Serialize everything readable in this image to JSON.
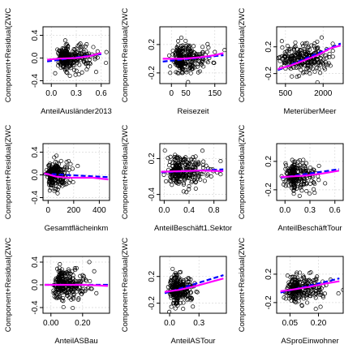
{
  "chart_data": [
    {
      "type": "scatter",
      "title": "",
      "xlabel": "AnteilAusländer2013",
      "ylabel": "Component+Residual(ZWC",
      "xlim": [
        -0.1,
        0.7
      ],
      "ylim": [
        -0.45,
        0.55
      ],
      "xticks": [
        "0.0",
        "0.3",
        "0.6"
      ],
      "xtick_values": [
        0.0,
        0.3,
        0.6
      ],
      "yticks": [
        "-0.4",
        "0.0",
        "0.4"
      ],
      "ytick_values": [
        -0.4,
        0.0,
        0.4
      ],
      "point_cloud": {
        "center_x": 0.2,
        "spread_x": 0.12,
        "skew_right": true,
        "center_y": 0.0,
        "spread_y": 0.12,
        "count": 260
      },
      "series": [
        {
          "color": "#0000ff",
          "dashed": true,
          "x": [
            -0.05,
            0.6
          ],
          "y": [
            -0.06,
            0.07
          ]
        },
        {
          "color": "#ff00ff",
          "dashed": false,
          "x": [
            -0.05,
            0.1,
            0.3,
            0.45,
            0.6
          ],
          "y": [
            -0.03,
            -0.01,
            0.0,
            0.03,
            0.09
          ]
        }
      ]
    },
    {
      "type": "scatter",
      "title": "",
      "xlabel": "Reisezeit",
      "ylabel": "Component+Residual(ZWC",
      "xlim": [
        -40,
        190
      ],
      "ylim": [
        -0.35,
        0.45
      ],
      "xticks": [
        "0",
        "50",
        "150"
      ],
      "xtick_values": [
        0,
        50,
        150
      ],
      "yticks": [
        "-0.2",
        "0.2"
      ],
      "ytick_values": [
        -0.2,
        0.2
      ],
      "point_cloud": {
        "center_x": 40,
        "spread_x": 35,
        "skew_right": true,
        "center_y": 0.0,
        "spread_y": 0.1,
        "count": 260
      },
      "series": [
        {
          "color": "#0000ff",
          "dashed": true,
          "x": [
            -30,
            180
          ],
          "y": [
            -0.04,
            0.05
          ]
        },
        {
          "color": "#ff00ff",
          "dashed": false,
          "x": [
            -30,
            40,
            100,
            150,
            180
          ],
          "y": [
            0.0,
            0.0,
            0.02,
            0.05,
            0.08
          ]
        }
      ]
    },
    {
      "type": "scatter",
      "title": "",
      "xlabel": "MeterüberMeer",
      "ylabel": "Component+Residual(ZWC",
      "xlim": [
        150,
        2800
      ],
      "ylim": [
        -0.35,
        0.5
      ],
      "xticks": [
        "500",
        "2000"
      ],
      "xtick_values": [
        500,
        2000
      ],
      "yticks": [
        "-0.2",
        "0.2"
      ],
      "ytick_values": [
        -0.2,
        0.2
      ],
      "point_cloud": {
        "center_x": 1200,
        "spread_x": 550,
        "skew_right": false,
        "center_y": 0.02,
        "spread_y": 0.11,
        "count": 260
      },
      "series": [
        {
          "color": "#0000ff",
          "dashed": true,
          "x": [
            200,
            2700
          ],
          "y": [
            -0.15,
            0.25
          ]
        },
        {
          "color": "#ff00ff",
          "dashed": false,
          "x": [
            200,
            700,
            1200,
            1800,
            2300,
            2700
          ],
          "y": [
            -0.13,
            -0.08,
            -0.01,
            0.08,
            0.18,
            0.22
          ]
        }
      ]
    },
    {
      "type": "scatter",
      "title": "",
      "xlabel": "Gesamtflächeinkm",
      "ylabel": "Component+Residual(ZWC",
      "xlim": [
        -40,
        480
      ],
      "ylim": [
        -0.45,
        0.55
      ],
      "xticks": [
        "0",
        "200",
        "400"
      ],
      "xtick_values": [
        0,
        200,
        400
      ],
      "yticks": [
        "-0.4",
        "0.0",
        "0.4"
      ],
      "ytick_values": [
        -0.4,
        0.0,
        0.4
      ],
      "point_cloud": {
        "center_x": 40,
        "spread_x": 45,
        "skew_right": true,
        "center_y": 0.0,
        "spread_y": 0.11,
        "count": 230
      },
      "series": [
        {
          "color": "#0000ff",
          "dashed": true,
          "x": [
            -30,
            470
          ],
          "y": [
            0.02,
            -0.04
          ]
        },
        {
          "color": "#ff00ff",
          "dashed": false,
          "x": [
            -30,
            60,
            150,
            250,
            350,
            470
          ],
          "y": [
            0.03,
            -0.03,
            -0.05,
            -0.05,
            -0.05,
            -0.08
          ]
        }
      ]
    },
    {
      "type": "scatter",
      "title": "",
      "xlabel": "AnteilBeschäft1.Sektor",
      "ylabel": "Component+Residual(ZWC",
      "xlim": [
        -0.07,
        1.0
      ],
      "ylim": [
        -0.5,
        0.45
      ],
      "xticks": [
        "0.0",
        "0.4",
        "0.8"
      ],
      "xtick_values": [
        0.0,
        0.4,
        0.8
      ],
      "yticks": [
        "-0.4",
        "0.2"
      ],
      "ytick_values": [
        -0.4,
        0.2
      ],
      "point_cloud": {
        "center_x": 0.25,
        "spread_x": 0.18,
        "skew_right": true,
        "center_y": -0.02,
        "spread_y": 0.12,
        "count": 260
      },
      "series": [
        {
          "color": "#0000ff",
          "dashed": true,
          "x": [
            -0.05,
            0.95
          ],
          "y": [
            -0.03,
            0.02
          ]
        },
        {
          "color": "#ff00ff",
          "dashed": false,
          "x": [
            -0.05,
            0.3,
            0.6,
            0.95
          ],
          "y": [
            -0.02,
            -0.01,
            0.0,
            -0.01
          ]
        }
      ]
    },
    {
      "type": "scatter",
      "title": "",
      "xlabel": "AnteilBeschäftTour",
      "ylabel": "Component+Residual(ZWC",
      "xlim": [
        -0.1,
        0.7
      ],
      "ylim": [
        -0.35,
        0.45
      ],
      "xticks": [
        "0.0",
        "0.3",
        "0.6"
      ],
      "xtick_values": [
        0.0,
        0.3,
        0.6
      ],
      "yticks": [
        "-0.2",
        "0.2"
      ],
      "ytick_values": [
        -0.2,
        0.2
      ],
      "point_cloud": {
        "center_x": 0.12,
        "spread_x": 0.1,
        "skew_right": true,
        "center_y": 0.0,
        "spread_y": 0.1,
        "count": 230
      },
      "series": [
        {
          "color": "#0000ff",
          "dashed": true,
          "x": [
            -0.05,
            0.65
          ],
          "y": [
            -0.03,
            0.09
          ]
        },
        {
          "color": "#ff00ff",
          "dashed": false,
          "x": [
            -0.05,
            0.1,
            0.25,
            0.45,
            0.65
          ],
          "y": [
            -0.02,
            -0.01,
            0.0,
            0.03,
            0.07
          ]
        }
      ]
    },
    {
      "type": "scatter",
      "title": "",
      "xlabel": "AnteilASBau",
      "ylabel": "Component+Residual(ZWC",
      "xlim": [
        -0.05,
        0.37
      ],
      "ylim": [
        -0.5,
        0.5
      ],
      "xticks": [
        "0.00",
        "0.20"
      ],
      "xtick_values": [
        0.0,
        0.2
      ],
      "yticks": [
        "-0.4",
        "0.0",
        "0.4"
      ],
      "ytick_values": [
        -0.4,
        0.0,
        0.4
      ],
      "point_cloud": {
        "center_x": 0.08,
        "spread_x": 0.06,
        "skew_right": true,
        "center_y": 0.0,
        "spread_y": 0.13,
        "count": 270
      },
      "series": [
        {
          "color": "#0000ff",
          "dashed": true,
          "x": [
            -0.04,
            0.36
          ],
          "y": [
            0.0,
            0.0
          ]
        },
        {
          "color": "#ff00ff",
          "dashed": false,
          "x": [
            -0.04,
            0.1,
            0.2,
            0.3,
            0.36
          ],
          "y": [
            0.0,
            0.0,
            0.0,
            -0.01,
            -0.02
          ]
        }
      ]
    },
    {
      "type": "scatter",
      "title": "",
      "xlabel": "AnteilASTour",
      "ylabel": "Component+Residual(ZWC",
      "xlim": [
        -0.1,
        0.58
      ],
      "ylim": [
        -0.35,
        0.5
      ],
      "xticks": [
        "0.0",
        "0.3"
      ],
      "xtick_values": [
        0.0,
        0.3
      ],
      "yticks": [
        "-0.2",
        "0.2"
      ],
      "ytick_values": [
        -0.2,
        0.2
      ],
      "point_cloud": {
        "center_x": 0.08,
        "spread_x": 0.07,
        "skew_right": true,
        "center_y": 0.0,
        "spread_y": 0.11,
        "count": 260
      },
      "series": [
        {
          "color": "#0000ff",
          "dashed": true,
          "x": [
            -0.05,
            0.55
          ],
          "y": [
            -0.05,
            0.22
          ]
        },
        {
          "color": "#ff00ff",
          "dashed": false,
          "x": [
            -0.05,
            0.1,
            0.25,
            0.4,
            0.55
          ],
          "y": [
            -0.03,
            0.0,
            0.05,
            0.11,
            0.17
          ]
        }
      ]
    },
    {
      "type": "scatter",
      "title": "",
      "xlabel": "ASproEinwohner",
      "ylabel": "Component+Residual(ZWC",
      "xlim": [
        -0.02,
        0.33
      ],
      "ylim": [
        -0.35,
        0.45
      ],
      "xticks": [
        "0.05",
        "0.20"
      ],
      "xtick_values": [
        0.05,
        0.2
      ],
      "yticks": [
        "-0.2",
        "0.2"
      ],
      "ytick_values": [
        -0.2,
        0.2
      ],
      "point_cloud": {
        "center_x": 0.09,
        "spread_x": 0.06,
        "skew_right": true,
        "center_y": 0.0,
        "spread_y": 0.1,
        "count": 250
      },
      "series": [
        {
          "color": "#0000ff",
          "dashed": true,
          "x": [
            0.0,
            0.31
          ],
          "y": [
            -0.06,
            0.14
          ]
        },
        {
          "color": "#ff00ff",
          "dashed": false,
          "x": [
            0.0,
            0.08,
            0.15,
            0.24,
            0.31
          ],
          "y": [
            -0.04,
            -0.01,
            0.02,
            0.07,
            0.1
          ]
        }
      ]
    }
  ]
}
